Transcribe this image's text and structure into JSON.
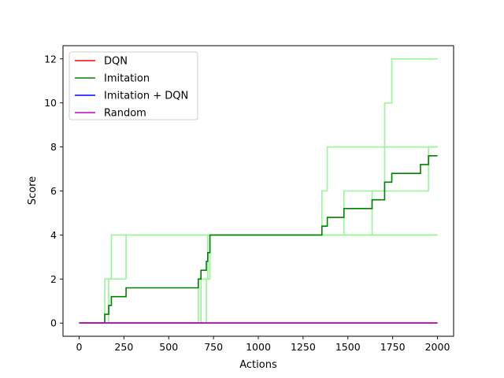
{
  "chart_data": {
    "type": "line",
    "title": "",
    "xlabel": "Actions",
    "ylabel": "Score",
    "xlim": [
      -90,
      2090
    ],
    "ylim": [
      -0.6,
      12.6
    ],
    "xticks": [
      0,
      250,
      500,
      750,
      1000,
      1250,
      1500,
      1750,
      2000
    ],
    "yticks": [
      0,
      2,
      4,
      6,
      8,
      10,
      12
    ],
    "legend_position": "top-left",
    "grid": false,
    "series": [
      {
        "name": "DQN",
        "color": "#ff0000",
        "step": true,
        "x": [
          0,
          2000
        ],
        "y": [
          0,
          0
        ]
      },
      {
        "name": "Imitation",
        "color": "#008000",
        "step": true,
        "x": [
          0,
          143,
          165,
          180,
          262,
          665,
          680,
          710,
          718,
          730,
          1355,
          1385,
          1478,
          1635,
          1705,
          1745,
          1905,
          1950,
          2000
        ],
        "y": [
          0,
          0.4,
          0.8,
          1.2,
          1.6,
          2.0,
          2.4,
          2.8,
          3.2,
          4.0,
          4.4,
          4.8,
          5.2,
          5.6,
          6.4,
          6.8,
          7.2,
          7.6,
          7.6
        ]
      },
      {
        "name": "Imitation + DQN",
        "color": "#0000ff",
        "step": true,
        "x": [
          0,
          2000
        ],
        "y": [
          0,
          0
        ]
      },
      {
        "name": "Random",
        "color": "#bf00bf",
        "step": true,
        "x": [
          0,
          2000
        ],
        "y": [
          0,
          0
        ]
      }
    ],
    "runs": [
      {
        "color": "#98f598",
        "x": [
          0,
          143,
          180,
          2000
        ],
        "y": [
          0,
          2,
          4,
          4
        ]
      },
      {
        "color": "#98f598",
        "x": [
          0,
          165,
          262,
          2000
        ],
        "y": [
          0,
          2,
          4,
          4
        ]
      },
      {
        "color": "#98f598",
        "x": [
          0,
          665,
          718,
          1355,
          1385,
          2000
        ],
        "y": [
          0,
          2,
          4,
          6,
          8,
          8
        ]
      },
      {
        "color": "#98f598",
        "x": [
          0,
          680,
          730,
          1478,
          1705,
          1745,
          2000
        ],
        "y": [
          0,
          2,
          4,
          6,
          10,
          12,
          12
        ]
      },
      {
        "color": "#98f598",
        "x": [
          0,
          710,
          718,
          1635,
          1905,
          1950,
          2000
        ],
        "y": [
          0,
          2,
          4,
          6,
          6,
          8,
          8
        ]
      }
    ]
  }
}
